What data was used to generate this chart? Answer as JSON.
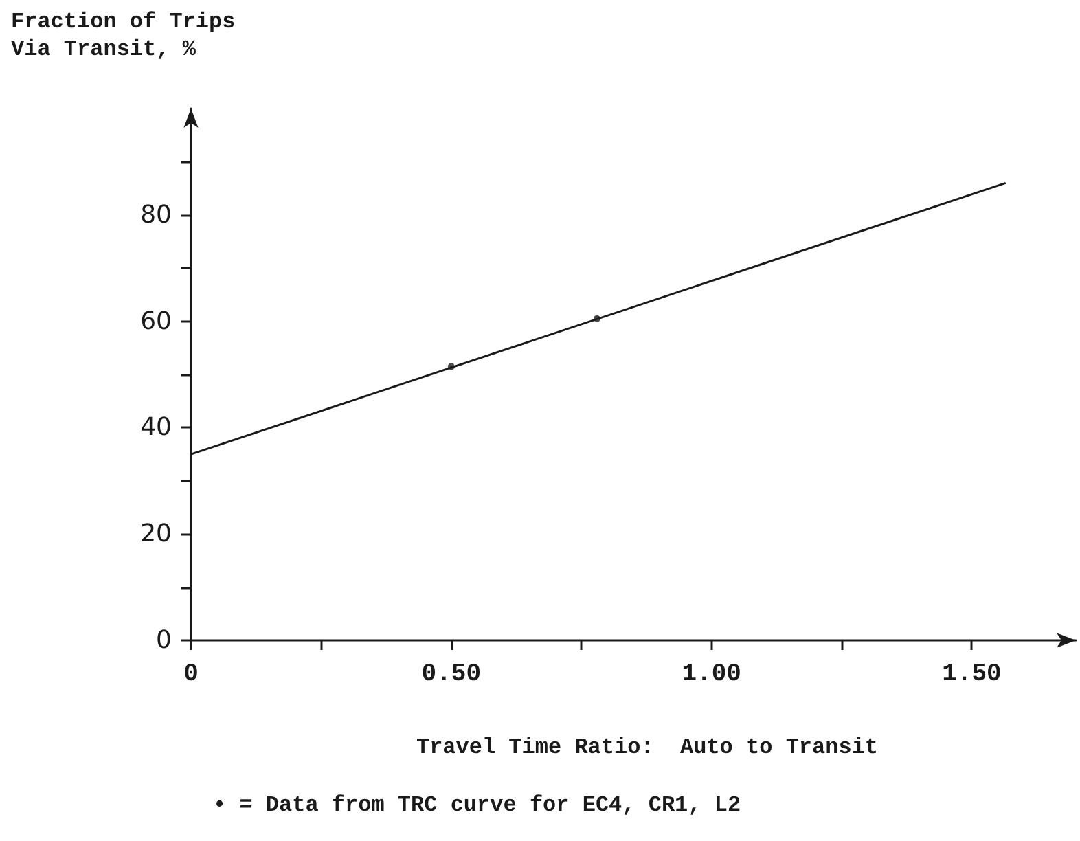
{
  "chart_data": {
    "type": "line",
    "xlabel": "Travel Time Ratio:  Auto to Transit",
    "ylabel": "Fraction of Trips Via Transit, %",
    "annotations": [
      "• = Data from TRC curve for EC4, CR1, L2"
    ],
    "series": [
      {
        "color": "#1a1a1a",
        "x": [
          0,
          1.565
        ],
        "values": [
          35,
          86
        ],
        "marker": "none"
      },
      {
        "type": "scatter",
        "color": "#1a1a1a",
        "x": [
          0.5,
          0.78
        ],
        "values": [
          51.5,
          60.5
        ],
        "marker": "circle"
      }
    ],
    "xlim": [
      0,
      1.7
    ],
    "ylim": [
      0,
      100
    ],
    "xticks": [
      0,
      {
        "value": 0.25,
        "label": null
      },
      {
        "value": 0.5,
        "label": "0.50"
      },
      {
        "value": 0.75,
        "label": null
      },
      {
        "value": 1,
        "label": "1.00"
      },
      {
        "value": 1.25,
        "label": null
      },
      {
        "value": 1.5,
        "label": "1.50"
      }
    ],
    "yticks": [
      0,
      {
        "value": 10,
        "label": null
      },
      20,
      {
        "value": 30,
        "label": null
      },
      40,
      {
        "value": 50,
        "label": null
      },
      60,
      {
        "value": 70,
        "label": null
      },
      80,
      {
        "value": 90,
        "label": null
      }
    ],
    "grid": false
  }
}
